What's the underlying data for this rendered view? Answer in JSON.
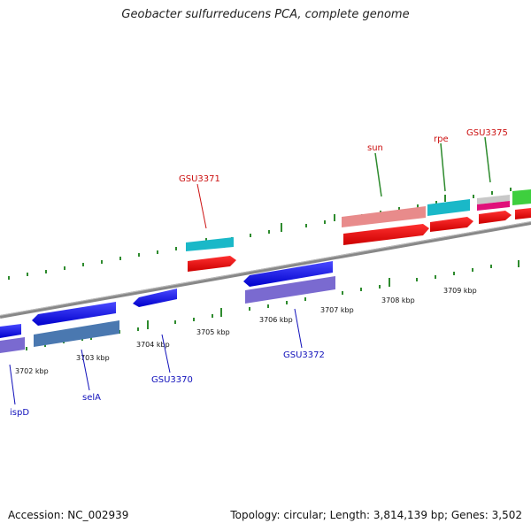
{
  "title": "Geobacter sulfurreducens PCA, complete genome",
  "footer": {
    "accession": "Accession: NC_002939",
    "stats": "Topology: circular; Length: 3,814,139 bp; Genes: 3,502"
  },
  "scale_labels": [
    "3702 kbp",
    "3703 kbp",
    "3704 kbp",
    "3705 kbp",
    "3706 kbp",
    "3707 kbp",
    "3708 kbp",
    "3709 kbp"
  ],
  "gene_labels_outer": [
    "GSU3371",
    "sun",
    "rpe",
    "GSU3375"
  ],
  "gene_labels_inner": [
    "ispD",
    "selA",
    "GSU3370",
    "GSU3372"
  ],
  "colors": {
    "backbone": "#888888",
    "tick": "#2e8b2e",
    "red_label": "#cc1111",
    "blue_label": "#1111bb"
  }
}
